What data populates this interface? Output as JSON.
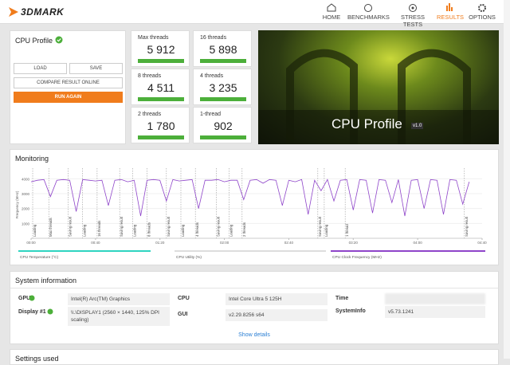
{
  "header": {
    "logo": "3DMARK",
    "nav": [
      "HOME",
      "BENCHMARKS",
      "STRESS TESTS",
      "RESULTS",
      "OPTIONS"
    ],
    "active": 3
  },
  "cpu_profile": {
    "title": "CPU Profile",
    "buttons": {
      "load": "LOAD",
      "save": "SAVE",
      "compare": "COMPARE RESULT ONLINE",
      "run": "RUN AGAIN"
    }
  },
  "scores": [
    {
      "label": "Max threads",
      "value": "5 912"
    },
    {
      "label": "16 threads",
      "value": "5 898"
    },
    {
      "label": "8 threads",
      "value": "4 511"
    },
    {
      "label": "4 threads",
      "value": "3 235"
    },
    {
      "label": "2 threads",
      "value": "1 780"
    },
    {
      "label": "1-thread",
      "value": "902"
    }
  ],
  "banner": {
    "title": "CPU Profile",
    "version": "v1.0"
  },
  "monitoring": {
    "title": "Monitoring",
    "chart": {
      "type": "line",
      "ylabel": "Frequency (MHz)",
      "x": [
        0,
        4,
        8,
        12,
        16,
        20,
        24,
        28,
        32,
        36,
        40,
        44,
        48,
        52,
        56,
        60,
        64,
        68,
        72,
        76,
        80,
        84,
        88,
        92,
        96,
        100,
        104,
        108,
        112,
        116,
        120,
        124,
        128,
        132,
        136,
        140,
        144,
        148,
        152,
        156,
        160,
        164,
        168,
        172,
        176,
        180,
        184,
        188,
        192,
        196,
        200,
        204,
        208,
        212,
        216,
        220,
        224,
        228,
        232,
        236,
        240,
        244,
        248,
        252,
        256,
        260,
        264,
        268,
        272
      ],
      "series": [
        {
          "name": "CPU Clock Frequency (MHz)",
          "color": "#8e44c9",
          "values": [
            3800,
            3900,
            3950,
            2800,
            3900,
            3950,
            3900,
            1800,
            3950,
            3900,
            3850,
            3900,
            2200,
            3900,
            3950,
            3800,
            3900,
            1500,
            3900,
            3950,
            3900,
            2500,
            3950,
            3850,
            3900,
            3950,
            2000,
            3900,
            3900,
            3950,
            3800,
            3900,
            3900,
            2600,
            3900,
            3950,
            3700,
            3950,
            3900,
            2200,
            3900,
            3800,
            3950,
            1600,
            3900,
            3200,
            3950,
            2500,
            3900,
            3950,
            1900,
            3950,
            3900,
            1700,
            3950,
            3900,
            2400,
            3950,
            1500,
            3900,
            3950,
            2000,
            3950,
            3900,
            1600,
            3950,
            3900,
            2300,
            3800
          ]
        }
      ],
      "legend": [
        {
          "name": "CPU Temperature (°C)",
          "color": "#2fd4c0"
        },
        {
          "name": "CPU Utility (%)",
          "color": "#dddddd"
        },
        {
          "name": "CPU Clock Frequency (MHz)",
          "color": "#8e44c9"
        }
      ],
      "xlim": [
        0,
        280
      ],
      "ylim": [
        0,
        4500
      ],
      "xticks": [
        {
          "value": 0,
          "label": "00:00"
        },
        {
          "value": 40,
          "label": "00:40"
        },
        {
          "value": 80,
          "label": "01:20"
        },
        {
          "value": 120,
          "label": "02:00"
        },
        {
          "value": 160,
          "label": "02:40"
        },
        {
          "value": 200,
          "label": "03:20"
        },
        {
          "value": 240,
          "label": "04:00"
        },
        {
          "value": 280,
          "label": "04:40"
        }
      ],
      "yticks": [
        1000,
        2000,
        3000,
        4000
      ],
      "annotations": [
        {
          "x": 1,
          "label": "Loading"
        },
        {
          "x": 11,
          "label": "Max threads"
        },
        {
          "x": 23,
          "label": "Saving result"
        },
        {
          "x": 32,
          "label": "Loading"
        },
        {
          "x": 41,
          "label": "16 threads"
        },
        {
          "x": 55,
          "label": "Saving result"
        },
        {
          "x": 63,
          "label": "Loading"
        },
        {
          "x": 72,
          "label": "8 threads"
        },
        {
          "x": 84,
          "label": "Saving result"
        },
        {
          "x": 93,
          "label": "Loading"
        },
        {
          "x": 102,
          "label": "4 threads"
        },
        {
          "x": 115,
          "label": "Saving result"
        },
        {
          "x": 123,
          "label": "Loading"
        },
        {
          "x": 131,
          "label": "2 threads"
        },
        {
          "x": 178,
          "label": "Saving result"
        },
        {
          "x": 182,
          "label": "Loading"
        },
        {
          "x": 195,
          "label": "1 thread"
        },
        {
          "x": 269,
          "label": "Saving result"
        }
      ]
    }
  },
  "system_info": {
    "title": "System information",
    "items": [
      {
        "label": "GPU",
        "value": "Intel(R) Arc(TM) Graphics"
      },
      {
        "label": "Display #1",
        "value": "\\\\.\\DISPLAY1 (2560 × 1440, 125% DPI scaling)"
      },
      {
        "label": "CPU",
        "value": "Intel Core Ultra 5 125H"
      },
      {
        "label": "GUI",
        "value": "v2.29.8256 s64"
      },
      {
        "label": "Time"
      },
      {
        "label": "SystemInfo",
        "value": "v5.73.1241"
      }
    ],
    "show_details": "Show details"
  },
  "settings": {
    "title": "Settings used"
  }
}
